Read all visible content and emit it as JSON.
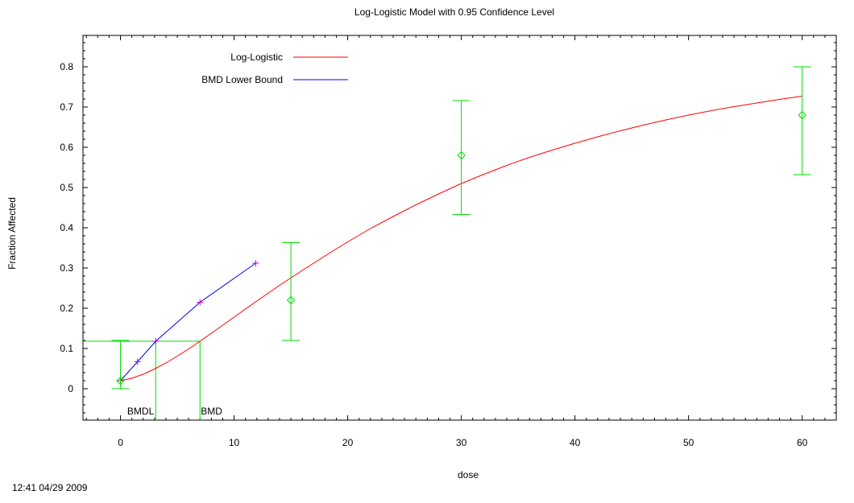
{
  "chart_data": {
    "type": "scatter",
    "title": "Log-Logistic Model with 0.95 Confidence Level",
    "xlabel": "dose",
    "ylabel": "Fraction Affected",
    "xlim": [
      -3.3,
      63
    ],
    "ylim": [
      -0.078,
      0.878
    ],
    "xticks": [
      0,
      10,
      20,
      30,
      40,
      50,
      60
    ],
    "yticks": [
      0,
      0.1,
      0.2,
      0.3,
      0.4,
      0.5,
      0.6,
      0.7,
      0.8
    ],
    "grid": false,
    "legend_position": "top-left",
    "legend": [
      {
        "label": "Log-Logistic",
        "color": "#ff0000"
      },
      {
        "label": "BMD Lower Bound",
        "color": "#0000ff"
      }
    ],
    "series": [
      {
        "name": "Log-Logistic",
        "kind": "line",
        "color": "#ff0000",
        "x": [
          0,
          1,
          2,
          3,
          4,
          5,
          6,
          7,
          8,
          9,
          10,
          12,
          14,
          16,
          18,
          20,
          22,
          24,
          26,
          28,
          30,
          32,
          34,
          36,
          38,
          40,
          42,
          44,
          46,
          48,
          50,
          52,
          54,
          56,
          58,
          60
        ],
        "y": [
          0.02,
          0.026,
          0.036,
          0.049,
          0.064,
          0.081,
          0.099,
          0.118,
          0.138,
          0.158,
          0.178,
          0.218,
          0.257,
          0.294,
          0.33,
          0.365,
          0.398,
          0.428,
          0.457,
          0.484,
          0.51,
          0.533,
          0.555,
          0.575,
          0.593,
          0.61,
          0.626,
          0.641,
          0.655,
          0.668,
          0.68,
          0.691,
          0.701,
          0.71,
          0.719,
          0.727
        ]
      },
      {
        "name": "BMD Lower Bound",
        "kind": "line",
        "color": "#0000ff",
        "marker": "plus",
        "marker_color": "#cc00cc",
        "x": [
          0,
          1.5,
          3.1,
          7,
          11.9
        ],
        "y": [
          0.02,
          0.067,
          0.118,
          0.215,
          0.312
        ]
      },
      {
        "name": "Observed",
        "kind": "errorbar",
        "color": "#00dd00",
        "marker": "diamond",
        "x": [
          0,
          15,
          30,
          60
        ],
        "y": [
          0.02,
          0.22,
          0.58,
          0.68
        ],
        "lower": [
          0,
          0.12,
          0.433,
          0.532
        ],
        "upper": [
          0.12,
          0.363,
          0.716,
          0.8
        ]
      }
    ],
    "bmr_level": 0.118,
    "bmd": 7,
    "bmdl": 3.1,
    "annotations": [
      {
        "text": "BMDL",
        "x": 3.1
      },
      {
        "text": "BMD",
        "x": 7
      }
    ],
    "timestamp": "12:41 04/29 2009"
  }
}
